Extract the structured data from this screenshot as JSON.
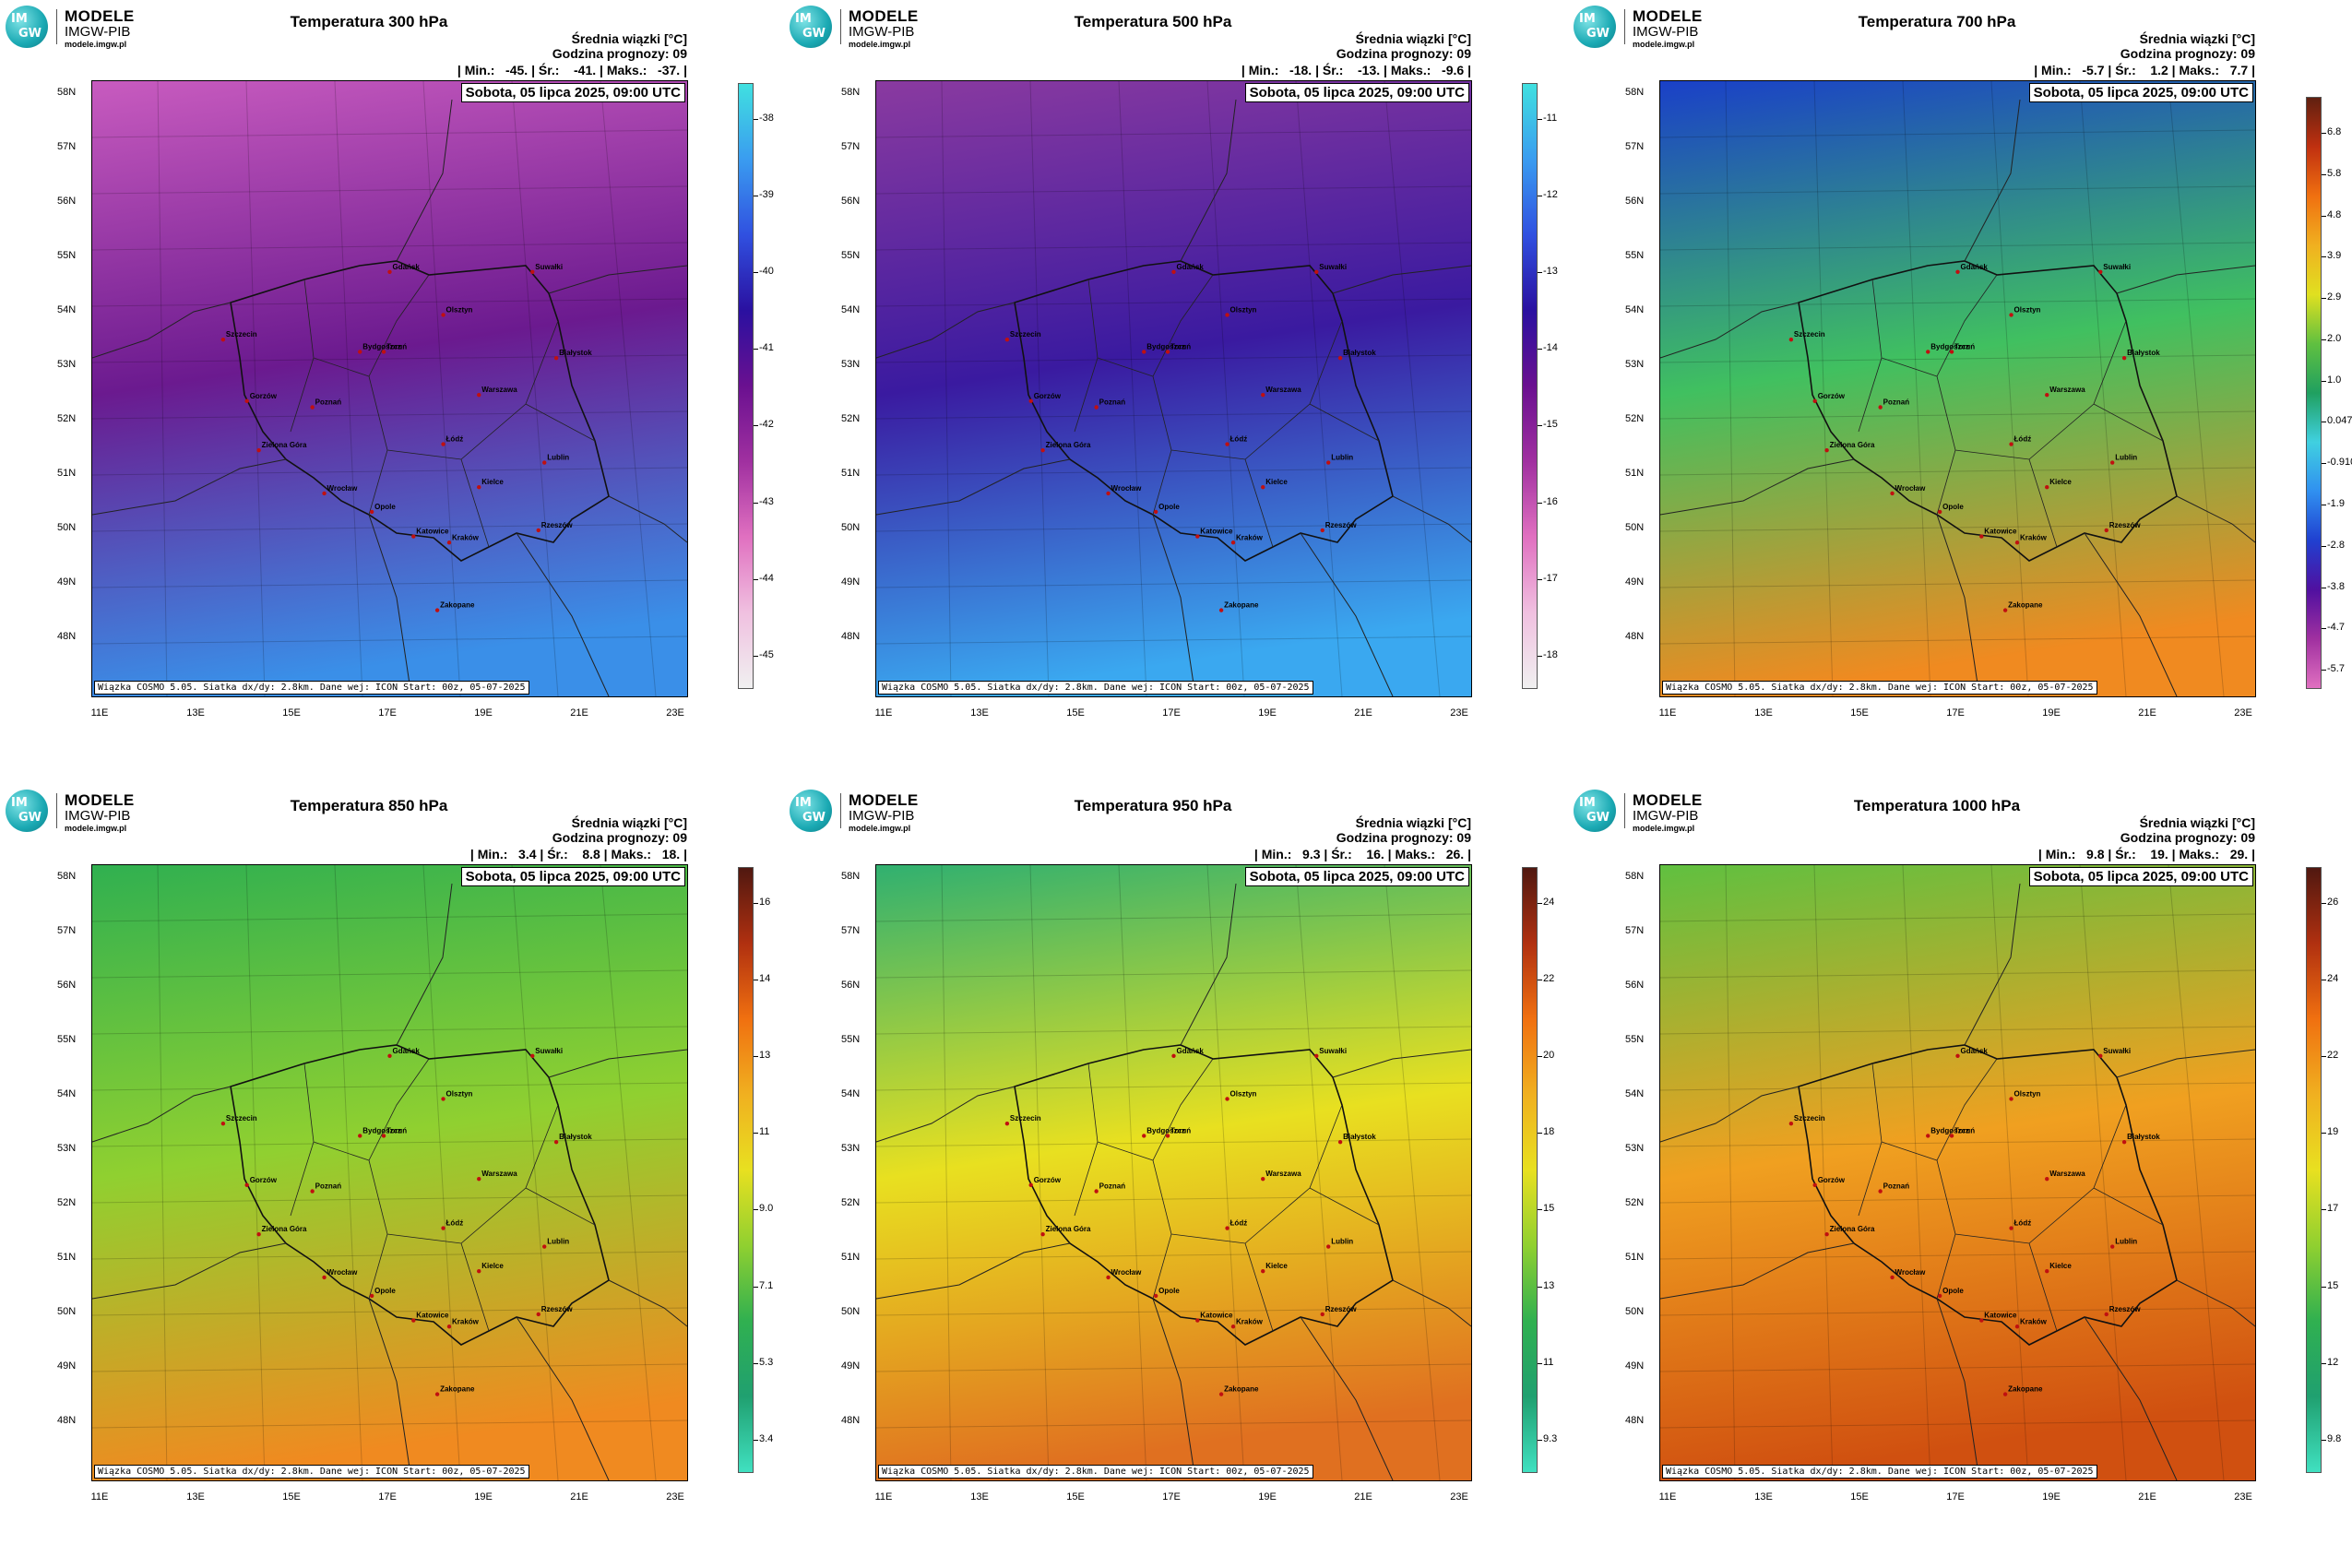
{
  "logo": {
    "line1": "MODELE",
    "line2": "IMGW-PIB",
    "line3": "modele.imgw.pl",
    "mark_top": "IM",
    "mark_bottom": "GW"
  },
  "common": {
    "ensemble_label": "Średnia wiązki [°C]",
    "forecast_hour": "Godzina prognozy: 09",
    "date": "Sobota, 05 lipca 2025, 09:00 UTC",
    "footer": "Wiązka COSMO 5.05. Siatka dx/dy: 2.8km. Dane wej: ICON Start: 00z, 05-07-2025",
    "lat_labels": [
      "58N",
      "57N",
      "56N",
      "55N",
      "54N",
      "53N",
      "52N",
      "51N",
      "50N",
      "49N",
      "48N"
    ],
    "lon_labels": [
      "11E",
      "13E",
      "15E",
      "17E",
      "19E",
      "21E",
      "23E"
    ]
  },
  "cities": [
    "Gdańsk",
    "Olsztyn",
    "Suwałki",
    "Szczecin",
    "Bydgoszcz",
    "Toruń",
    "Białystok",
    "Gorzów",
    "Poznań",
    "Warszawa",
    "Zielona Góra",
    "Łódź",
    "Lublin",
    "Wrocław",
    "Opole",
    "Kielce",
    "Rzeszów",
    "Katowice",
    "Kraków",
    "Zakopane"
  ],
  "panels": [
    {
      "title": "Temperatura 300 hPa",
      "min": "-45.",
      "avg": "-41.",
      "max": "-37.",
      "colorbar": {
        "labels": [
          "-38",
          "-39",
          "-40",
          "-41",
          "-42",
          "-43",
          "-44",
          "-45"
        ],
        "colors": [
          "#40e0e0",
          "#3a9cf0",
          "#3050e0",
          "#2a10a0",
          "#6a1090",
          "#a030a0",
          "#e070c0",
          "#f0c0e0",
          "#f0f0f0"
        ]
      },
      "field": {
        "north": "#c85bbf",
        "mid": "#6b1a8f",
        "south": "#3a8fe8"
      }
    },
    {
      "title": "Temperatura 500 hPa",
      "min": "-18.",
      "avg": "-13.",
      "max": "-9.6",
      "colorbar": {
        "labels": [
          "-11",
          "-12",
          "-13",
          "-14",
          "-15",
          "-16",
          "-17",
          "-18"
        ],
        "colors": [
          "#40e0e0",
          "#3a9cf0",
          "#3050e0",
          "#2a10a0",
          "#6a1090",
          "#a030a0",
          "#e070c0",
          "#f0c0e0",
          "#f0f0f0"
        ]
      },
      "field": {
        "north": "#8a3aa0",
        "mid": "#3a1aa0",
        "south": "#3aa8f0"
      }
    },
    {
      "title": "Temperatura 700 hPa",
      "min": "-5.7",
      "avg": "1.2",
      "max": "7.7",
      "colorbar": {
        "labels": [
          "6.8",
          "5.8",
          "4.8",
          "3.9",
          "2.9",
          "2.0",
          "1.0",
          "0.047",
          "-0.910",
          "-1.9",
          "-2.8",
          "-3.8",
          "-4.7",
          "-5.7"
        ],
        "colors": [
          "#602010",
          "#c03010",
          "#f07010",
          "#f0b020",
          "#e0e020",
          "#60c040",
          "#20a060",
          "#40d0e0",
          "#3090f0",
          "#2040d0",
          "#5010a0",
          "#a030a0",
          "#e070c0"
        ]
      },
      "field": {
        "north": "#1a40c8",
        "mid": "#40c060",
        "south": "#f08a20"
      }
    },
    {
      "title": "Temperatura 850 hPa",
      "min": "3.4",
      "avg": "8.8",
      "max": "18.",
      "colorbar": {
        "labels": [
          "16",
          "14",
          "13",
          "11",
          "9.0",
          "7.1",
          "5.3",
          "3.4"
        ],
        "colors": [
          "#501810",
          "#b03010",
          "#f07010",
          "#f0b020",
          "#e8e020",
          "#90d030",
          "#30b050",
          "#20a070",
          "#40e0c0"
        ]
      },
      "field": {
        "north": "#30b050",
        "mid": "#90d030",
        "south": "#f08a20"
      }
    },
    {
      "title": "Temperatura 950 hPa",
      "min": "9.3",
      "avg": "16.",
      "max": "26.",
      "colorbar": {
        "labels": [
          "24",
          "22",
          "20",
          "18",
          "15",
          "13",
          "11",
          "9.3"
        ],
        "colors": [
          "#501810",
          "#b03010",
          "#f07010",
          "#f0b020",
          "#e8e020",
          "#90d030",
          "#30b050",
          "#20a070",
          "#40e0c0"
        ]
      },
      "field": {
        "north": "#30b070",
        "mid": "#e8e020",
        "south": "#e07020"
      }
    },
    {
      "title": "Temperatura 1000 hPa",
      "min": "9.8",
      "avg": "19.",
      "max": "29.",
      "colorbar": {
        "labels": [
          "26",
          "24",
          "22",
          "19",
          "17",
          "15",
          "12",
          "9.8"
        ],
        "colors": [
          "#501810",
          "#b03010",
          "#f07010",
          "#f0b020",
          "#e8e020",
          "#90d030",
          "#30b050",
          "#20a070",
          "#40e0c0"
        ]
      },
      "field": {
        "north": "#60c040",
        "mid": "#f0a020",
        "south": "#d05010"
      }
    }
  ]
}
